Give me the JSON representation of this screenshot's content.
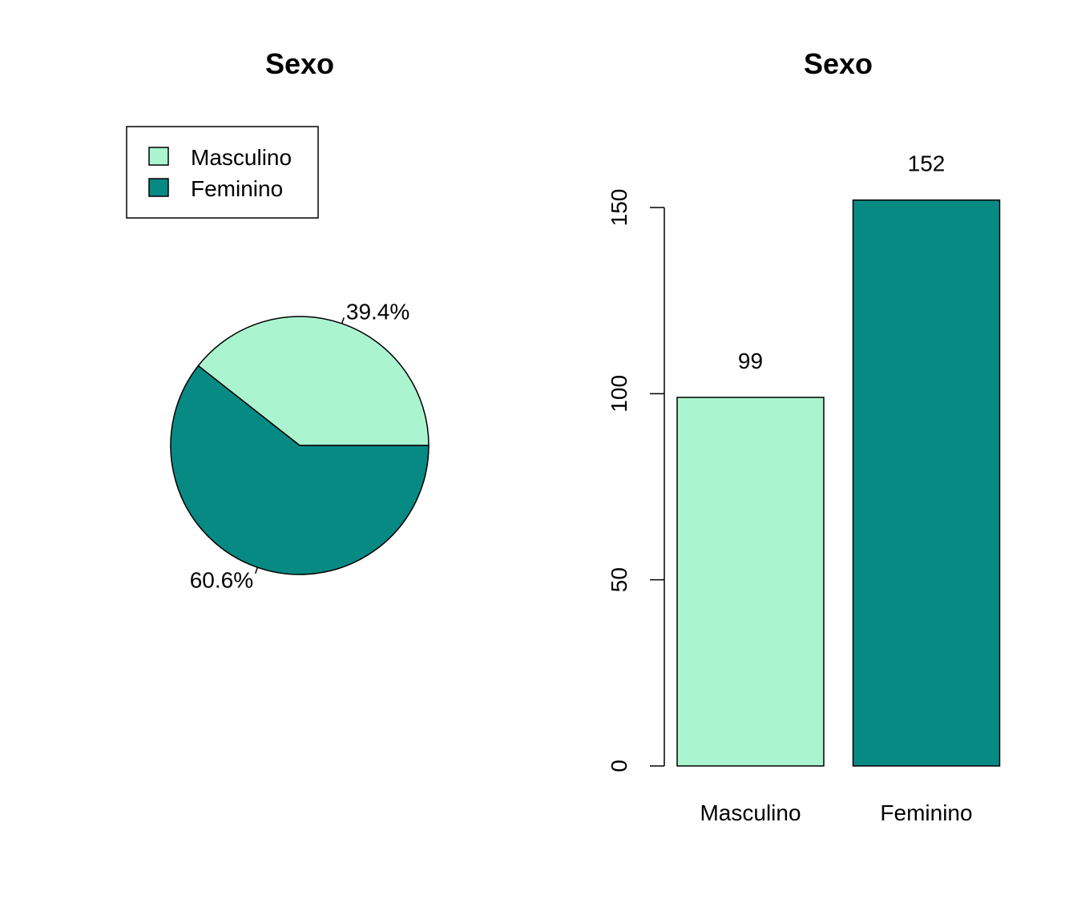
{
  "chart_data": [
    {
      "type": "pie",
      "title": "Sexo",
      "categories": [
        "Masculino",
        "Feminino"
      ],
      "values": [
        39.4,
        60.6
      ],
      "value_labels": [
        "39.4%",
        "60.6%"
      ],
      "colors": [
        "#aaf5d0",
        "#088a84"
      ],
      "legend": {
        "placement": "top-left",
        "entries": [
          "Masculino",
          "Feminino"
        ]
      }
    },
    {
      "type": "bar",
      "title": "Sexo",
      "categories": [
        "Masculino",
        "Feminino"
      ],
      "values": [
        99,
        152
      ],
      "value_labels": [
        "99",
        "152"
      ],
      "colors": [
        "#aaf5d0",
        "#088a84"
      ],
      "ylim": [
        0,
        150
      ],
      "yticks": [
        0,
        50,
        100,
        150
      ],
      "ytick_labels": [
        "0",
        "50",
        "100",
        "150"
      ],
      "xlabel": "",
      "ylabel": "",
      "grid": false
    }
  ]
}
